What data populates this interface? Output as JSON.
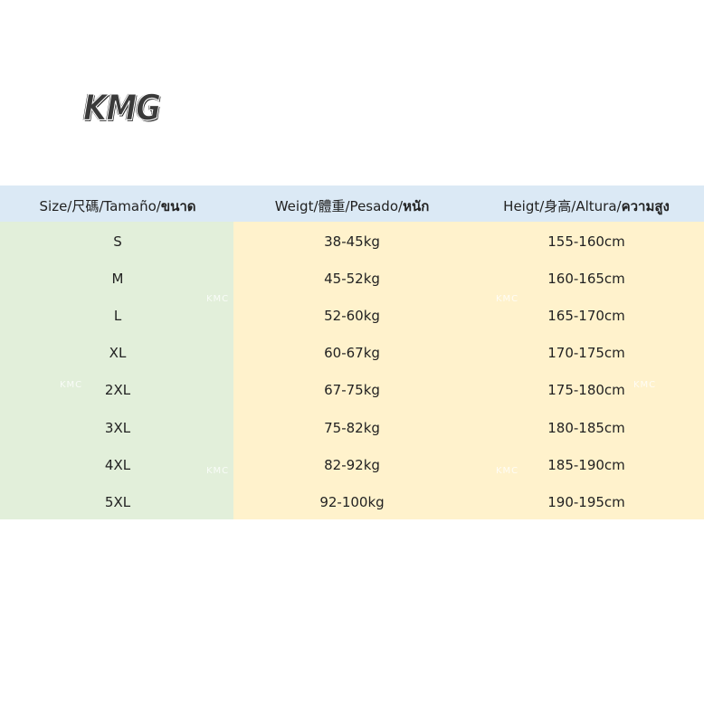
{
  "logo": "KMG",
  "watermark": "KMC",
  "table": {
    "header": [
      {
        "label": "Size/尺碼/Tamaño/",
        "label_thai": "ขนาด"
      },
      {
        "label": "Weigt/體重/Pesado/",
        "label_thai": "หนัก"
      },
      {
        "label": "Heigt/身高/Altura/",
        "label_thai": "ความสูง"
      }
    ],
    "rows": [
      [
        "S",
        "38-45kg",
        "155-160cm"
      ],
      [
        "M",
        "45-52kg",
        "160-165cm"
      ],
      [
        "L",
        "52-60kg",
        "165-170cm"
      ],
      [
        "XL",
        "60-67kg",
        "170-175cm"
      ],
      [
        "2XL",
        "67-75kg",
        "175-180cm"
      ],
      [
        "3XL",
        "75-82kg",
        "180-185cm"
      ],
      [
        "4XL",
        "82-92kg",
        "185-190cm"
      ],
      [
        "5XL",
        "92-100kg",
        "190-195cm"
      ]
    ]
  }
}
